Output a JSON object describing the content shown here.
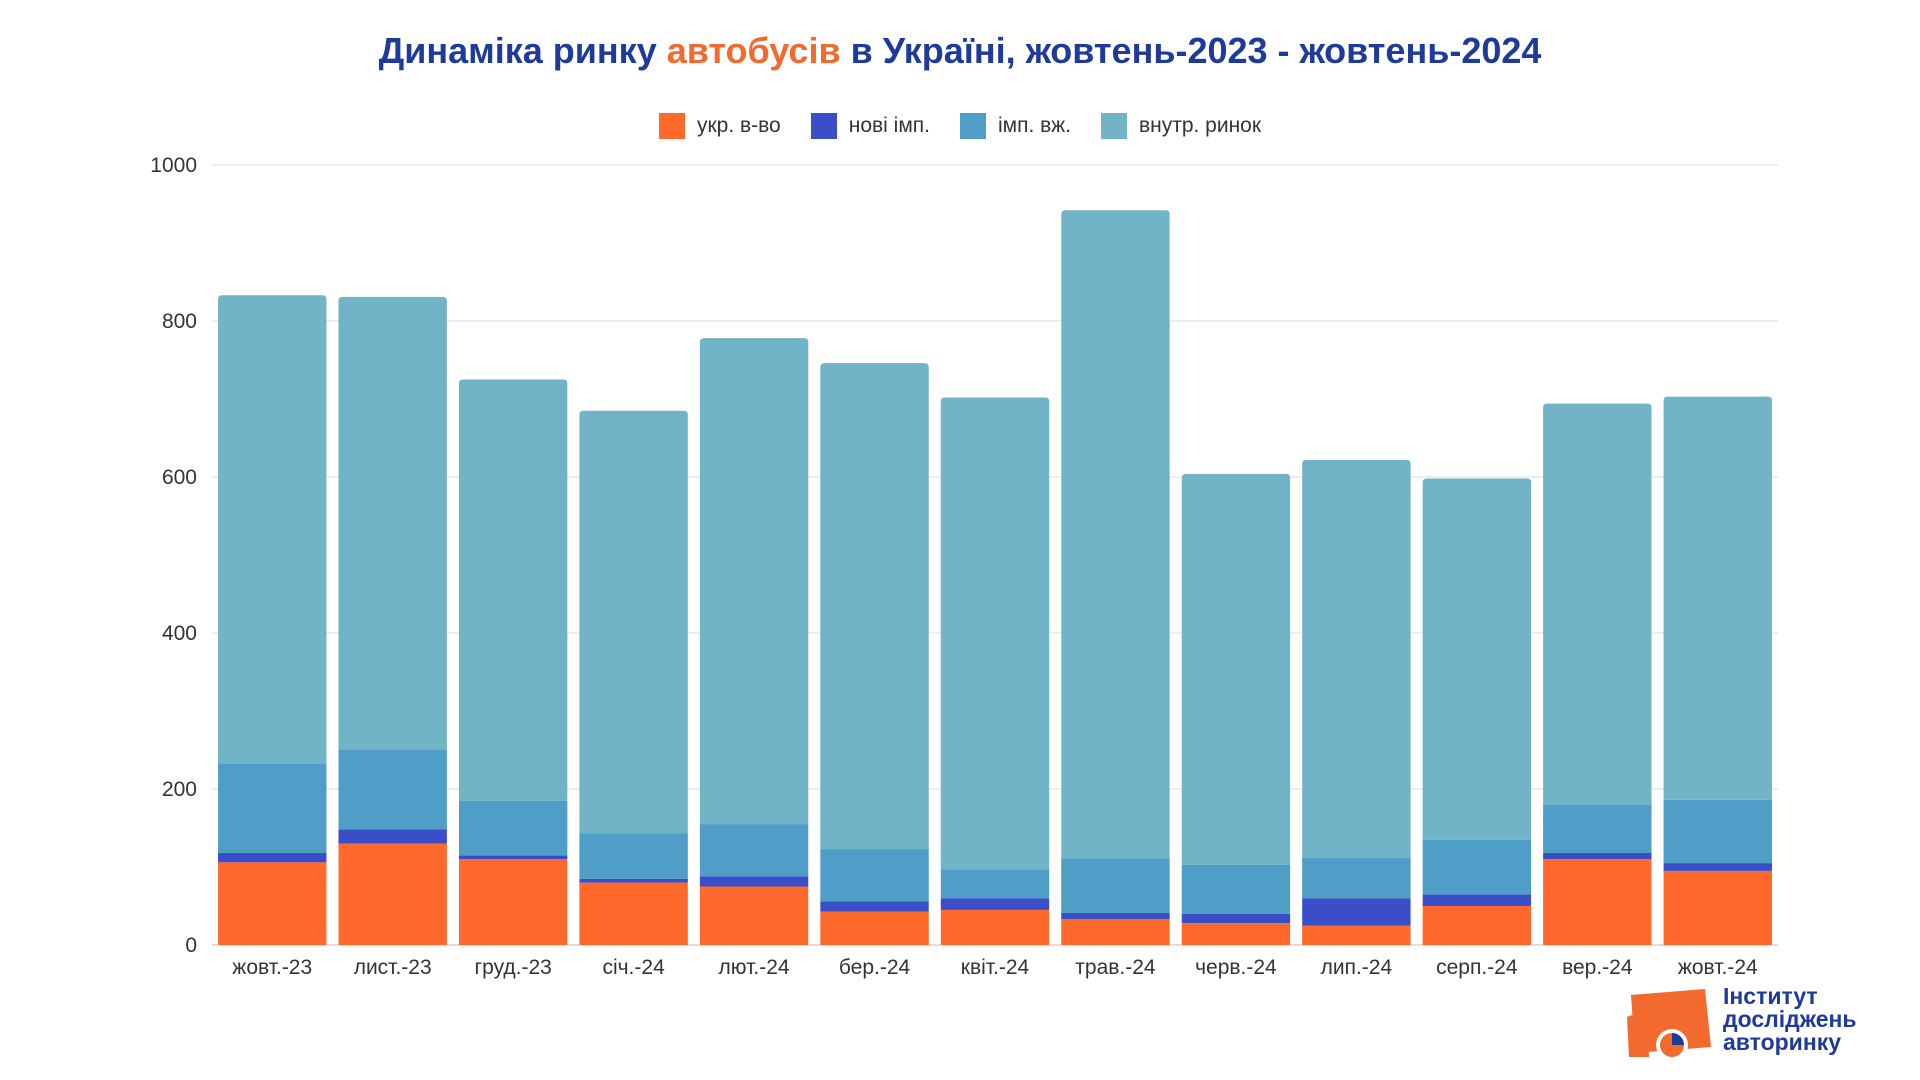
{
  "title": {
    "part1": "Динаміка ринку ",
    "accent": "автобусів",
    "part2": " в Україні, жовтень-2023 - жовтень-2024"
  },
  "logo": {
    "line1": "Інститут",
    "line2": "досліджень",
    "line3": "авторинку"
  },
  "colors": {
    "title": "#1e3a9a",
    "accent": "#f26a2d",
    "grid": "#dddddd",
    "tick_text": "#333333"
  },
  "chart_data": {
    "type": "bar",
    "stacked": true,
    "categories": [
      "жовт.-23",
      "лист.-23",
      "груд.-23",
      "січ.-24",
      "лют.-24",
      "бер.-24",
      "квіт.-24",
      "трав.-24",
      "черв.-24",
      "лип.-24",
      "серп.-24",
      "вер.-24",
      "жовт.-24"
    ],
    "series": [
      {
        "name": "укр. в-во",
        "color": "#ff6a2c",
        "values": [
          106,
          130,
          110,
          80,
          75,
          43,
          45,
          33,
          28,
          25,
          50,
          110,
          95
        ]
      },
      {
        "name": "нові імп.",
        "color": "#3a4fc7",
        "values": [
          12,
          18,
          5,
          5,
          13,
          13,
          15,
          8,
          12,
          35,
          15,
          8,
          10
        ]
      },
      {
        "name": "імп. вж.",
        "color": "#4e9ec7",
        "values": [
          115,
          103,
          70,
          58,
          67,
          67,
          37,
          70,
          63,
          52,
          70,
          62,
          81
        ]
      },
      {
        "name": "внутр. ринок",
        "color": "#72b4c7",
        "values": [
          600,
          580,
          540,
          542,
          623,
          623,
          605,
          831,
          501,
          510,
          463,
          514,
          517
        ]
      }
    ],
    "y_ticks": [
      0,
      200,
      400,
      600,
      800,
      1000
    ],
    "ylim": [
      0,
      1000
    ],
    "legend_position": "top",
    "grid": true
  }
}
